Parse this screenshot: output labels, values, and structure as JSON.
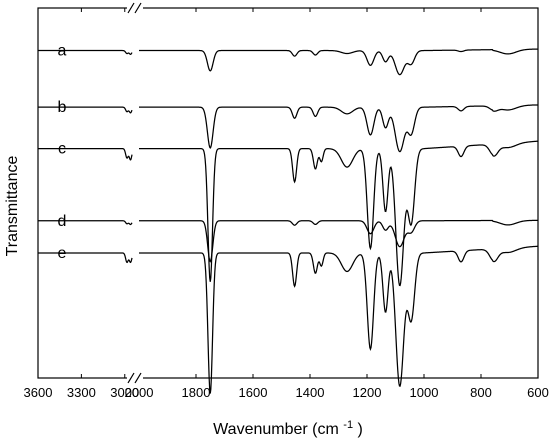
{
  "chart_data": {
    "type": "line",
    "title": "",
    "xlabel": "Wavenumber",
    "xlabel_unit_prefix": "(cm",
    "xlabel_unit_sup": "-1",
    "xlabel_unit_suffix": ")",
    "ylabel": "Transmittance",
    "axis_break": "//",
    "x_axis_reversed": true,
    "y_ticks_shown": false,
    "grid": false,
    "legend": "none",
    "x_segment_left": {
      "xlim": [
        3600,
        2950
      ],
      "ticks": [
        3600,
        3300,
        3000
      ]
    },
    "x_segment_right": {
      "xlim": [
        2000,
        600
      ],
      "ticks": [
        2000,
        1800,
        1600,
        1400,
        1200,
        1000,
        800,
        600
      ]
    },
    "tick_labels": [
      "3600",
      "3300",
      "3000",
      "2000",
      "1800",
      "1600",
      "1400",
      "1200",
      "1000",
      "800",
      "600"
    ],
    "series": [
      {
        "name": "a",
        "baseline": 0.885,
        "low_seg": [
          [
            2985,
            0.008
          ],
          [
            2960,
            0.01
          ]
        ],
        "features": [
          [
            1750,
            0.055,
            10
          ],
          [
            1454,
            0.015,
            8
          ],
          [
            1381,
            0.012,
            8
          ],
          [
            1270,
            0.008,
            20
          ],
          [
            1188,
            0.04,
            12
          ],
          [
            1135,
            0.03,
            10
          ],
          [
            1085,
            0.065,
            16
          ],
          [
            1045,
            0.035,
            12
          ],
          [
            870,
            0.004,
            10
          ]
        ],
        "tail_drift": 0.004
      },
      {
        "name": "b",
        "baseline": 0.732,
        "low_seg": [
          [
            2985,
            0.012
          ],
          [
            2960,
            0.015
          ]
        ],
        "features": [
          [
            1750,
            0.11,
            10
          ],
          [
            1454,
            0.03,
            8
          ],
          [
            1381,
            0.025,
            8
          ],
          [
            1270,
            0.018,
            20
          ],
          [
            1188,
            0.075,
            12
          ],
          [
            1135,
            0.055,
            10
          ],
          [
            1085,
            0.12,
            16
          ],
          [
            1045,
            0.07,
            12
          ],
          [
            870,
            0.012,
            10
          ],
          [
            755,
            0.012,
            14
          ]
        ],
        "tail_drift": 0.006
      },
      {
        "name": "c",
        "baseline": 0.62,
        "low_seg": [
          [
            2985,
            0.025
          ],
          [
            2960,
            0.03
          ]
        ],
        "features": [
          [
            1750,
            0.36,
            8
          ],
          [
            1454,
            0.09,
            7
          ],
          [
            1381,
            0.055,
            7
          ],
          [
            1360,
            0.035,
            6
          ],
          [
            1270,
            0.05,
            20
          ],
          [
            1188,
            0.27,
            11
          ],
          [
            1135,
            0.17,
            9
          ],
          [
            1085,
            0.37,
            14
          ],
          [
            1045,
            0.2,
            12
          ],
          [
            870,
            0.028,
            10
          ],
          [
            755,
            0.03,
            14
          ]
        ],
        "tail_drift": 0.02
      },
      {
        "name": "d",
        "baseline": 0.425,
        "low_seg": [
          [
            2985,
            0.008
          ],
          [
            2960,
            0.01
          ]
        ],
        "features": [
          [
            1750,
            0.11,
            9
          ],
          [
            1454,
            0.012,
            8
          ],
          [
            1381,
            0.01,
            8
          ],
          [
            1188,
            0.035,
            12
          ],
          [
            1135,
            0.025,
            10
          ],
          [
            1085,
            0.07,
            16
          ],
          [
            1045,
            0.03,
            12
          ]
        ],
        "tail_drift": 0.001
      },
      {
        "name": "e",
        "baseline": 0.338,
        "low_seg": [
          [
            2985,
            0.025
          ],
          [
            2960,
            0.025
          ]
        ],
        "features": [
          [
            1750,
            0.38,
            8
          ],
          [
            1454,
            0.09,
            7
          ],
          [
            1381,
            0.055,
            7
          ],
          [
            1360,
            0.035,
            6
          ],
          [
            1270,
            0.05,
            20
          ],
          [
            1188,
            0.26,
            11
          ],
          [
            1135,
            0.16,
            9
          ],
          [
            1085,
            0.36,
            14
          ],
          [
            1045,
            0.18,
            12
          ],
          [
            870,
            0.03,
            10
          ],
          [
            755,
            0.032,
            14
          ]
        ],
        "tail_drift": 0.018
      }
    ]
  }
}
